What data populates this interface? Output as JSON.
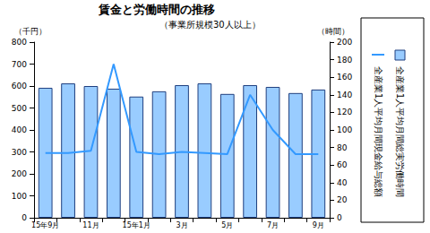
{
  "chart_data": {
    "type": "bar",
    "title": "賃金と労働時間の推移",
    "subtitle": "（事業所規模30人以上）",
    "y_label": "（千円）",
    "y2_label": "（時間）",
    "categories": [
      "15年9月",
      null,
      "11月",
      null,
      "15年1月",
      null,
      "3月",
      null,
      "5月",
      null,
      "7月",
      null,
      "9月"
    ],
    "series": [
      {
        "name": "全産業1人平均月間総実労働時間",
        "type": "bar",
        "axis": "y2",
        "color": "#99ccff",
        "values": [
          148,
          153,
          150,
          147,
          138,
          144,
          151,
          153,
          141,
          151,
          149,
          142,
          146
        ]
      },
      {
        "name": "全産業1人平均月間現金給与総額",
        "type": "line",
        "color": "#3399ff",
        "marker": "none",
        "values": [
          295,
          295,
          305,
          700,
          300,
          290,
          300,
          295,
          290,
          560,
          400,
          290,
          290
        ]
      }
    ],
    "ylim": [
      0,
      800
    ],
    "yticks": [
      0,
      100,
      200,
      300,
      400,
      500,
      600,
      700,
      800
    ],
    "y2lim": [
      0,
      200
    ],
    "y2ticks": [
      0,
      20,
      40,
      60,
      80,
      100,
      120,
      140,
      160,
      180,
      200
    ],
    "grid": false,
    "legend": "right"
  }
}
